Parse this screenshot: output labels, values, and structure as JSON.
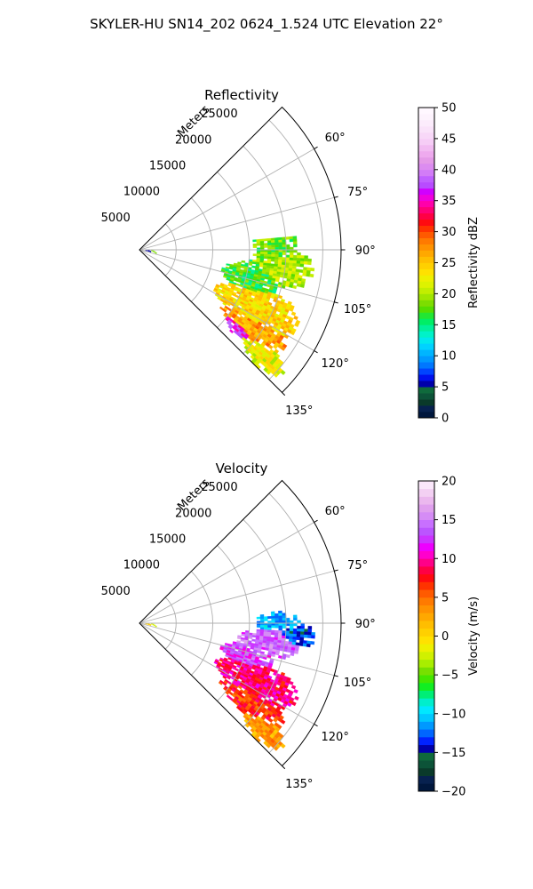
{
  "figure": {
    "title": "SKYLER-HU  SN14_202  0624_1.524 UTC Elevation 22°"
  },
  "chart_data": [
    {
      "type": "heatmap",
      "projection": "polar-sector",
      "title": "Reflectivity",
      "range_label": "Meters",
      "range_ticks": [
        5000,
        10000,
        15000,
        20000,
        25000
      ],
      "range_tick_labels": [
        "5000",
        "10000",
        "15000",
        "20000",
        "25000"
      ],
      "range_max": 27500,
      "theta_range_deg": [
        45,
        135
      ],
      "azimuth_ticks_deg": [
        60,
        75,
        90,
        105,
        120,
        135
      ],
      "azimuth_tick_labels": [
        "60°",
        "75°",
        "90°",
        "105°",
        "120°",
        "135°"
      ],
      "grid": true,
      "colorbar": {
        "label": "Reflectivity dBZ",
        "range": [
          0,
          50
        ],
        "ticks": [
          0,
          5,
          10,
          15,
          20,
          25,
          30,
          35,
          40,
          45,
          50
        ],
        "tick_labels": [
          "0",
          "5",
          "10",
          "15",
          "20",
          "25",
          "30",
          "35",
          "40",
          "45",
          "50"
        ],
        "colors": [
          "#00173d",
          "#07214f",
          "#0a3a2a",
          "#0c5338",
          "#0f6a3c",
          "#0000aa",
          "#0011ee",
          "#0044ff",
          "#0077ff",
          "#0099ff",
          "#00b5ff",
          "#00d2ff",
          "#00e8ee",
          "#00f2c8",
          "#00f09a",
          "#00ee66",
          "#22e633",
          "#55dd00",
          "#7ddd00",
          "#a0e600",
          "#c2ee00",
          "#ddf200",
          "#eef000",
          "#ffe100",
          "#ffd000",
          "#ffbe00",
          "#ffa800",
          "#ff9200",
          "#ff7a00",
          "#ff5a00",
          "#ff3300",
          "#ff0a10",
          "#ff0044",
          "#ff0077",
          "#ff00aa",
          "#f000dd",
          "#d000ff",
          "#b84cff",
          "#c060ff",
          "#d27cf7",
          "#dc8cf0",
          "#e59ae8",
          "#eeaaee",
          "#f2bbf2",
          "#f6cdf6",
          "#f8d8f8",
          "#fae3fa",
          "#fcecfc",
          "#fdf3fd",
          "#fff8ff"
        ]
      },
      "field": {
        "blobs": [
          {
            "az": 88,
            "range": 18200,
            "az_spread": 10,
            "range_spread": 3000,
            "value": 18
          },
          {
            "az": 97,
            "range": 19500,
            "az_spread": 7,
            "range_spread": 4200,
            "value": 20
          },
          {
            "az": 103,
            "range": 15500,
            "az_spread": 8,
            "range_spread": 4000,
            "value": 17
          },
          {
            "az": 116,
            "range": 17500,
            "az_spread": 9,
            "range_spread": 6000,
            "value": 24
          },
          {
            "az": 124,
            "range": 18500,
            "az_spread": 5,
            "range_spread": 5000,
            "value": 27
          },
          {
            "az": 128,
            "range": 16800,
            "az_spread": 3,
            "range_spread": 2200,
            "value": 36
          },
          {
            "az": 130,
            "range": 22000,
            "az_spread": 4,
            "range_spread": 3500,
            "value": 22
          }
        ],
        "clutter": [
          {
            "az": 93,
            "range": 800,
            "value": 5
          },
          {
            "az": 96,
            "range": 1600,
            "value": 18
          }
        ]
      }
    },
    {
      "type": "heatmap",
      "projection": "polar-sector",
      "title": "Velocity",
      "range_label": "Meters",
      "range_ticks": [
        5000,
        10000,
        15000,
        20000,
        25000
      ],
      "range_tick_labels": [
        "5000",
        "10000",
        "15000",
        "20000",
        "25000"
      ],
      "range_max": 27500,
      "theta_range_deg": [
        45,
        135
      ],
      "azimuth_ticks_deg": [
        60,
        75,
        90,
        105,
        120,
        135
      ],
      "azimuth_tick_labels": [
        "60°",
        "75°",
        "90°",
        "105°",
        "120°",
        "135°"
      ],
      "grid": true,
      "colorbar": {
        "label": "Velocity (m/s)",
        "range": [
          -20,
          20
        ],
        "ticks": [
          -20,
          -15,
          -10,
          -5,
          0,
          5,
          10,
          15,
          20
        ],
        "tick_labels": [
          "−20",
          "−15",
          "−10",
          "−5",
          "0",
          "5",
          "10",
          "15",
          "20"
        ],
        "colors": [
          "#00173d",
          "#07214f",
          "#0a3a2a",
          "#0c5338",
          "#0f6a3c",
          "#0000aa",
          "#0022ff",
          "#0066ff",
          "#0099ff",
          "#00c8ff",
          "#00e8ff",
          "#00eecc",
          "#00ee77",
          "#11ee22",
          "#44e600",
          "#77e000",
          "#a8ee00",
          "#d0f000",
          "#eef000",
          "#ffe100",
          "#ffd000",
          "#ffbe00",
          "#ffa800",
          "#ff9200",
          "#ff7a00",
          "#ff5a00",
          "#ff3300",
          "#ff0a10",
          "#ff0044",
          "#ff0088",
          "#ff00cc",
          "#ee00ff",
          "#cc33ff",
          "#bb55ff",
          "#c870ff",
          "#d58cf5",
          "#e0a0ee",
          "#ebb8ee",
          "#f3d0f3",
          "#fbe8fb"
        ]
      },
      "field": {
        "blobs": [
          {
            "az": 89,
            "range": 18500,
            "az_spread": 4,
            "range_spread": 3000,
            "value": -11
          },
          {
            "az": 94,
            "range": 21500,
            "az_spread": 4,
            "range_spread": 2500,
            "value": -13
          },
          {
            "az": 98,
            "range": 17500,
            "az_spread": 6,
            "range_spread": 4200,
            "value": 14
          },
          {
            "az": 106,
            "range": 15000,
            "az_spread": 6,
            "range_spread": 3500,
            "value": 13
          },
          {
            "az": 116,
            "range": 17500,
            "az_spread": 8,
            "range_spread": 6000,
            "value": 9
          },
          {
            "az": 125,
            "range": 18500,
            "az_spread": 5,
            "range_spread": 5000,
            "value": 7
          },
          {
            "az": 130,
            "range": 22000,
            "az_spread": 4,
            "range_spread": 3500,
            "value": 3
          }
        ],
        "clutter": [
          {
            "az": 93,
            "range": 800,
            "value": 0
          },
          {
            "az": 96,
            "range": 1600,
            "value": -3
          }
        ]
      }
    }
  ]
}
